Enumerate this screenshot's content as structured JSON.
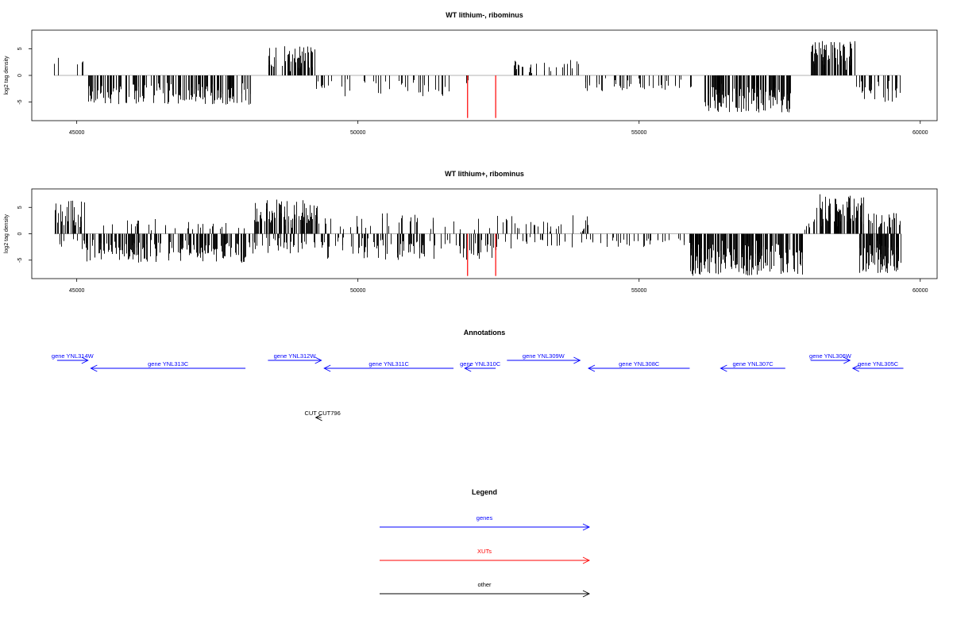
{
  "chart_data": [
    {
      "type": "bar",
      "title": "WT lithium-, ribominus",
      "ylabel": "log2 tag density",
      "xlim": [
        44200,
        60300
      ],
      "ylim": [
        -8.5,
        8.5
      ],
      "xticks": [
        45000,
        50000,
        55000,
        60000
      ],
      "xtick_labels": [
        "45000",
        "50000",
        "55000",
        "60000"
      ],
      "yticks": [
        5,
        0,
        -5
      ],
      "ytick_labels": [
        "5",
        "0",
        "-5"
      ],
      "grid": false,
      "baseline": 0,
      "baseline_x": [
        44600,
        59650
      ],
      "highlight": {
        "color": "#ff0000",
        "x": [
          51950,
          52450
        ],
        "values": [
          -8,
          -8
        ]
      },
      "regions": [
        {
          "x0": 44600,
          "x1": 44700,
          "min": 2.5,
          "max": 4,
          "n": 2
        },
        {
          "x0": 44950,
          "x1": 45150,
          "min": 1.5,
          "max": 3,
          "n": 3
        },
        {
          "x0": 45200,
          "x1": 48100,
          "min": -5.5,
          "max": -2,
          "n": 170
        },
        {
          "x0": 48400,
          "x1": 49250,
          "min": 1.5,
          "max": 5.5,
          "n": 60
        },
        {
          "x0": 49250,
          "x1": 52000,
          "min": -4,
          "max": -1,
          "n": 45
        },
        {
          "x0": 52750,
          "x1": 54000,
          "min": 0.5,
          "max": 3,
          "n": 30
        },
        {
          "x0": 54050,
          "x1": 55950,
          "min": -3,
          "max": -0.8,
          "n": 45
        },
        {
          "x0": 56100,
          "x1": 57700,
          "min": -7,
          "max": -2.5,
          "n": 150
        },
        {
          "x0": 58050,
          "x1": 58850,
          "min": 2,
          "max": 6.5,
          "n": 70
        },
        {
          "x0": 58850,
          "x1": 59650,
          "min": -5,
          "max": -1.5,
          "n": 35
        }
      ]
    },
    {
      "type": "bar",
      "title": "WT lithium+, ribominus",
      "ylabel": "log2 tag density",
      "xlim": [
        44200,
        60300
      ],
      "ylim": [
        -8.5,
        8.5
      ],
      "xticks": [
        45000,
        50000,
        55000,
        60000
      ],
      "xtick_labels": [
        "45000",
        "50000",
        "55000",
        "60000"
      ],
      "yticks": [
        5,
        0,
        -5
      ],
      "ytick_labels": [
        "5",
        "0",
        "-5"
      ],
      "grid": false,
      "baseline": 0,
      "baseline_x": [
        44600,
        59650
      ],
      "highlight": {
        "color": "#ff0000",
        "x": [
          51950,
          52450
        ],
        "values": [
          -8,
          -8
        ]
      },
      "regions": [
        {
          "x0": 44600,
          "x1": 45150,
          "min": 2,
          "max": 6.5,
          "n": 30
        },
        {
          "x0": 44600,
          "x1": 45150,
          "min": -3,
          "max": -1,
          "n": 10
        },
        {
          "x0": 45150,
          "x1": 48150,
          "min": -5.5,
          "max": -1.5,
          "n": 190
        },
        {
          "x0": 45300,
          "x1": 48000,
          "min": 1,
          "max": 3,
          "n": 30
        },
        {
          "x0": 48150,
          "x1": 49300,
          "min": 2,
          "max": 6.5,
          "n": 90
        },
        {
          "x0": 48150,
          "x1": 49300,
          "min": -4,
          "max": -1.5,
          "n": 30
        },
        {
          "x0": 49300,
          "x1": 52450,
          "min": -5,
          "max": -1,
          "n": 110
        },
        {
          "x0": 49300,
          "x1": 52450,
          "min": 1,
          "max": 4,
          "n": 35
        },
        {
          "x0": 52450,
          "x1": 54100,
          "min": 0.5,
          "max": 3.5,
          "n": 30
        },
        {
          "x0": 52450,
          "x1": 54100,
          "min": -3,
          "max": -1,
          "n": 25
        },
        {
          "x0": 54100,
          "x1": 55900,
          "min": -2.5,
          "max": -0.8,
          "n": 35
        },
        {
          "x0": 55900,
          "x1": 57900,
          "min": -8,
          "max": -2,
          "n": 200
        },
        {
          "x0": 57900,
          "x1": 58100,
          "min": 0.5,
          "max": 2,
          "n": 6
        },
        {
          "x0": 58100,
          "x1": 59000,
          "min": 2,
          "max": 7.5,
          "n": 90
        },
        {
          "x0": 58900,
          "x1": 59650,
          "min": -7.5,
          "max": -2,
          "n": 80
        },
        {
          "x0": 59000,
          "x1": 59650,
          "min": 1,
          "max": 4,
          "n": 30
        }
      ]
    }
  ],
  "annotations": {
    "title": "Annotations",
    "genes": [
      {
        "label": "gene YNL314W",
        "start": 44650,
        "end": 45200,
        "strand": "+",
        "row": 1
      },
      {
        "label": "gene YNL313C",
        "start": 45250,
        "end": 48000,
        "strand": "-",
        "row": 2
      },
      {
        "label": "gene YNL312W",
        "start": 48400,
        "end": 49350,
        "strand": "+",
        "row": 1
      },
      {
        "label": "gene YNL311C",
        "start": 49400,
        "end": 51700,
        "strand": "-",
        "row": 2
      },
      {
        "label": "gene YNL310C",
        "start": 51900,
        "end": 52450,
        "strand": "-",
        "row": 2
      },
      {
        "label": "gene YNL309W",
        "start": 52650,
        "end": 53950,
        "strand": "+",
        "row": 1
      },
      {
        "label": "gene YNL308C",
        "start": 54100,
        "end": 55900,
        "strand": "-",
        "row": 2
      },
      {
        "label": "gene YNL307C",
        "start": 56450,
        "end": 57600,
        "strand": "-",
        "row": 2
      },
      {
        "label": "gene YNL306W",
        "start": 58050,
        "end": 58750,
        "strand": "+",
        "row": 1
      },
      {
        "label": "gene YNL305C",
        "start": 58800,
        "end": 59700,
        "strand": "-",
        "row": 2
      }
    ],
    "other": [
      {
        "label": "CUT CUT796",
        "start": 49250,
        "end": 49350,
        "strand": "-"
      }
    ]
  },
  "legend": {
    "title": "Legend",
    "items": [
      {
        "label": "genes",
        "color": "#0000ff"
      },
      {
        "label": "XUTs",
        "color": "#ff0000"
      },
      {
        "label": "other",
        "color": "#000000"
      }
    ]
  }
}
